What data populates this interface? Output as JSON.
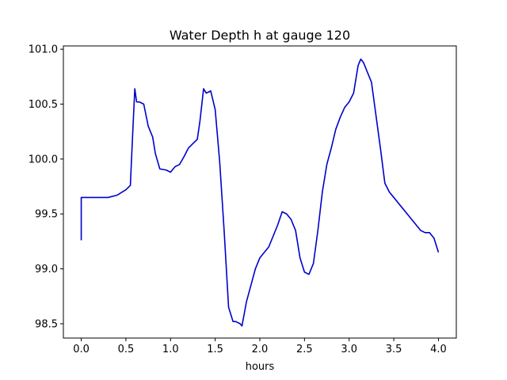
{
  "chart_data": {
    "type": "line",
    "title": "Water Depth h at gauge 120",
    "xlabel": "hours",
    "ylabel": "",
    "xlim": [
      -0.2,
      4.2
    ],
    "ylim": [
      98.37,
      101.03
    ],
    "xticks": [
      0.0,
      0.5,
      1.0,
      1.5,
      2.0,
      2.5,
      3.0,
      3.5,
      4.0
    ],
    "xtick_labels": [
      "0.0",
      "0.5",
      "1.0",
      "1.5",
      "2.0",
      "2.5",
      "3.0",
      "3.5",
      "4.0"
    ],
    "yticks": [
      98.5,
      99.0,
      99.5,
      100.0,
      100.5,
      101.0
    ],
    "ytick_labels": [
      "98.5",
      "99.0",
      "99.5",
      "100.0",
      "100.5",
      "101.0"
    ],
    "grid": false,
    "series": [
      {
        "color": "#0000cc",
        "x": [
          0.0,
          0.0,
          0.005,
          0.1,
          0.2,
          0.3,
          0.4,
          0.5,
          0.55,
          0.58,
          0.6,
          0.62,
          0.65,
          0.7,
          0.75,
          0.8,
          0.83,
          0.88,
          0.95,
          1.0,
          1.05,
          1.1,
          1.15,
          1.2,
          1.25,
          1.3,
          1.33,
          1.37,
          1.4,
          1.45,
          1.5,
          1.55,
          1.6,
          1.65,
          1.7,
          1.73,
          1.78,
          1.8,
          1.85,
          1.9,
          1.95,
          2.0,
          2.05,
          2.1,
          2.15,
          2.2,
          2.25,
          2.3,
          2.35,
          2.4,
          2.45,
          2.5,
          2.55,
          2.6,
          2.65,
          2.7,
          2.75,
          2.8,
          2.85,
          2.9,
          2.95,
          3.0,
          3.05,
          3.1,
          3.13,
          3.16,
          3.2,
          3.25,
          3.3,
          3.35,
          3.4,
          3.45,
          3.5,
          3.55,
          3.6,
          3.7,
          3.8,
          3.85,
          3.9,
          3.95,
          4.0
        ],
        "y": [
          99.26,
          99.65,
          99.65,
          99.65,
          99.65,
          99.65,
          99.67,
          99.72,
          99.76,
          100.3,
          100.64,
          100.52,
          100.52,
          100.5,
          100.3,
          100.2,
          100.05,
          99.91,
          99.9,
          99.88,
          99.93,
          99.95,
          100.02,
          100.1,
          100.14,
          100.18,
          100.35,
          100.64,
          100.6,
          100.62,
          100.45,
          99.98,
          99.35,
          98.65,
          98.52,
          98.52,
          98.5,
          98.48,
          98.7,
          98.85,
          99.0,
          99.1,
          99.15,
          99.2,
          99.3,
          99.4,
          99.52,
          99.5,
          99.45,
          99.35,
          99.1,
          98.97,
          98.95,
          99.05,
          99.35,
          99.7,
          99.95,
          100.1,
          100.27,
          100.38,
          100.47,
          100.52,
          100.6,
          100.85,
          100.91,
          100.88,
          100.8,
          100.7,
          100.4,
          100.1,
          99.78,
          99.7,
          99.65,
          99.6,
          99.55,
          99.45,
          99.35,
          99.33,
          99.33,
          99.28,
          99.15
        ]
      }
    ]
  }
}
